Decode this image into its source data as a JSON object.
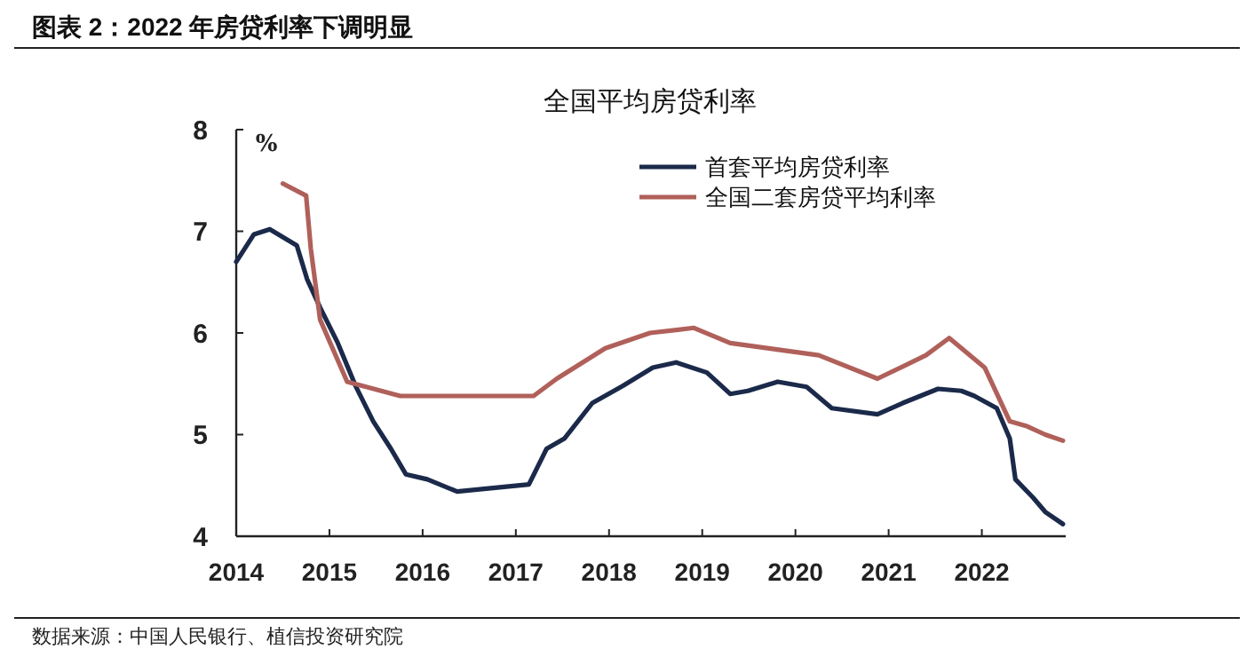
{
  "chart_data": {
    "type": "line",
    "title": "图表 2：2022 年房贷利率下调明显",
    "subtitle": "全国平均房贷利率",
    "ylabel": "%",
    "annotations": [
      "数据来源：中国人民银行、植信投资研究院"
    ],
    "xlim": [
      2014,
      2022.9
    ],
    "xticks": [
      2014,
      2015,
      2016,
      2017,
      2018,
      2019,
      2020,
      2021,
      2022
    ],
    "ylim": [
      4,
      8
    ],
    "yticks": [
      4,
      5,
      6,
      7,
      8
    ],
    "grid": false,
    "legend": "top right",
    "line_style": "solid",
    "marker": "none",
    "series": [
      {
        "name": "首套平均房贷利率",
        "color": "#1b2a4a",
        "x": [
          2014.0,
          2014.19,
          2014.36,
          2014.65,
          2014.76,
          2014.9,
          2015.09,
          2015.28,
          2015.47,
          2015.66,
          2015.82,
          2016.05,
          2016.37,
          2017.14,
          2017.33,
          2017.52,
          2017.82,
          2018.15,
          2018.47,
          2018.72,
          2019.05,
          2019.3,
          2019.49,
          2019.81,
          2020.12,
          2020.39,
          2020.88,
          2021.15,
          2021.53,
          2021.78,
          2021.92,
          2022.16,
          2022.3,
          2022.36,
          2022.55,
          2022.68,
          2022.87
        ],
        "values": [
          6.7,
          6.97,
          7.02,
          6.86,
          6.53,
          6.25,
          5.9,
          5.48,
          5.13,
          4.86,
          4.61,
          4.56,
          4.44,
          4.51,
          4.86,
          4.96,
          5.31,
          5.48,
          5.66,
          5.71,
          5.61,
          5.4,
          5.43,
          5.52,
          5.47,
          5.26,
          5.2,
          5.31,
          5.45,
          5.43,
          5.38,
          5.26,
          4.96,
          4.56,
          4.38,
          4.24,
          4.12
        ]
      },
      {
        "name": "全国二套房贷平均利率",
        "color": "#b0605a",
        "x": [
          2014.5,
          2014.75,
          2014.8,
          2014.9,
          2015.19,
          2015.76,
          2017.19,
          2017.44,
          2017.96,
          2018.44,
          2018.91,
          2019.3,
          2020.25,
          2020.88,
          2021.4,
          2021.65,
          2022.03,
          2022.3,
          2022.49,
          2022.68,
          2022.87
        ],
        "values": [
          7.47,
          7.35,
          6.83,
          6.13,
          5.52,
          5.38,
          5.38,
          5.55,
          5.85,
          6.0,
          6.05,
          5.9,
          5.78,
          5.55,
          5.78,
          5.95,
          5.66,
          5.13,
          5.08,
          5.0,
          4.94
        ]
      }
    ]
  }
}
